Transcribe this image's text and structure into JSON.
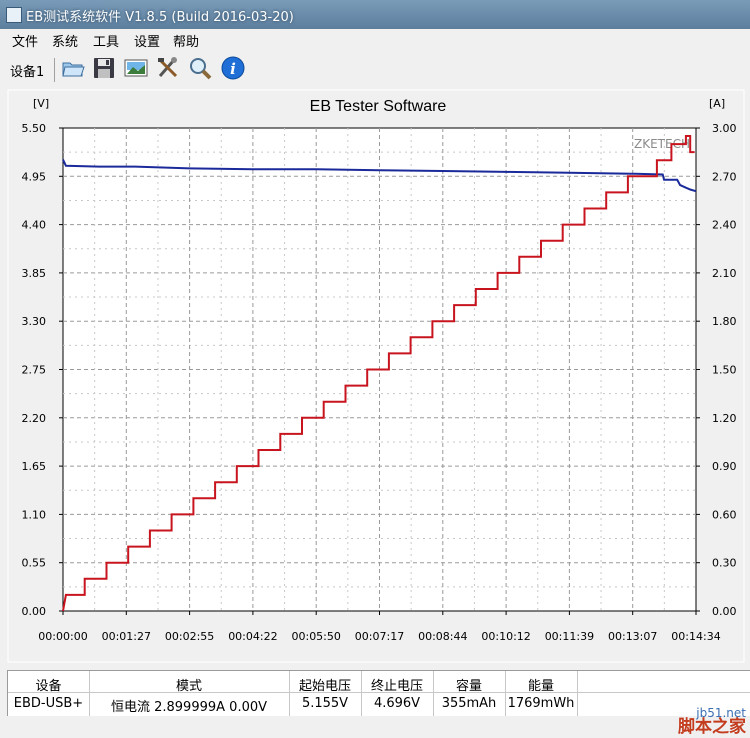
{
  "window": {
    "title": "EB测试系统软件 V1.8.5 (Build 2016-03-20)"
  },
  "menu": [
    "文件",
    "系统",
    "工具",
    "设置",
    "帮助"
  ],
  "toolbar": {
    "device_tab": "设备1",
    "buttons": [
      "open-folder-icon",
      "save-disk-icon",
      "image-chart-icon",
      "tools-icon",
      "zoom-magnifier-icon",
      "info-icon"
    ]
  },
  "chart_data": {
    "type": "line",
    "title": "EB Tester Software",
    "watermark": "ZKETECH",
    "left_unit": "[V]",
    "right_unit": "[A]",
    "left_ticks": [
      "0.00",
      "0.55",
      "1.10",
      "1.65",
      "2.20",
      "2.75",
      "3.30",
      "3.85",
      "4.40",
      "4.95",
      "5.50"
    ],
    "right_ticks": [
      "0.00",
      "0.30",
      "0.60",
      "0.90",
      "1.20",
      "1.50",
      "1.80",
      "2.10",
      "2.40",
      "2.70",
      "3.00"
    ],
    "x_ticks": [
      "00:00:00",
      "00:01:27",
      "00:02:55",
      "00:04:22",
      "00:05:50",
      "00:07:17",
      "00:08:44",
      "00:10:12",
      "00:11:39",
      "00:13:07",
      "00:14:34"
    ],
    "x_range_seconds": [
      0,
      874
    ],
    "ylim_left": [
      0,
      5.5
    ],
    "ylim_right": [
      0,
      3.0
    ],
    "grid": true,
    "series": [
      {
        "axis": "left",
        "color": "#1b2a9a",
        "points": [
          [
            0,
            5.14
          ],
          [
            4,
            5.07
          ],
          [
            50,
            5.06
          ],
          [
            100,
            5.06
          ],
          [
            175,
            5.04
          ],
          [
            262,
            5.03
          ],
          [
            350,
            5.03
          ],
          [
            437,
            5.02
          ],
          [
            524,
            5.01
          ],
          [
            612,
            5.0
          ],
          [
            699,
            4.99
          ],
          [
            786,
            4.98
          ],
          [
            828,
            4.97
          ],
          [
            830,
            4.91
          ],
          [
            848,
            4.91
          ],
          [
            852,
            4.85
          ],
          [
            860,
            4.82
          ],
          [
            866,
            4.8
          ],
          [
            874,
            4.78
          ]
        ]
      },
      {
        "axis": "right",
        "color": "#c8141e",
        "points": [
          [
            0,
            0.0
          ],
          [
            4,
            0.1
          ],
          [
            30,
            0.1
          ],
          [
            30,
            0.2
          ],
          [
            60,
            0.2
          ],
          [
            60,
            0.3
          ],
          [
            90,
            0.3
          ],
          [
            90,
            0.4
          ],
          [
            120,
            0.4
          ],
          [
            120,
            0.5
          ],
          [
            150,
            0.5
          ],
          [
            150,
            0.6
          ],
          [
            180,
            0.6
          ],
          [
            180,
            0.7
          ],
          [
            210,
            0.7
          ],
          [
            210,
            0.8
          ],
          [
            240,
            0.8
          ],
          [
            240,
            0.9
          ],
          [
            270,
            0.9
          ],
          [
            270,
            1.0
          ],
          [
            300,
            1.0
          ],
          [
            300,
            1.1
          ],
          [
            330,
            1.1
          ],
          [
            330,
            1.2
          ],
          [
            360,
            1.2
          ],
          [
            360,
            1.3
          ],
          [
            390,
            1.3
          ],
          [
            390,
            1.4
          ],
          [
            420,
            1.4
          ],
          [
            420,
            1.5
          ],
          [
            450,
            1.5
          ],
          [
            450,
            1.6
          ],
          [
            480,
            1.6
          ],
          [
            480,
            1.7
          ],
          [
            510,
            1.7
          ],
          [
            510,
            1.8
          ],
          [
            540,
            1.8
          ],
          [
            540,
            1.9
          ],
          [
            570,
            1.9
          ],
          [
            570,
            2.0
          ],
          [
            600,
            2.0
          ],
          [
            600,
            2.1
          ],
          [
            630,
            2.1
          ],
          [
            630,
            2.2
          ],
          [
            660,
            2.2
          ],
          [
            660,
            2.3
          ],
          [
            690,
            2.3
          ],
          [
            690,
            2.4
          ],
          [
            720,
            2.4
          ],
          [
            720,
            2.5
          ],
          [
            750,
            2.5
          ],
          [
            750,
            2.6
          ],
          [
            780,
            2.6
          ],
          [
            780,
            2.7
          ],
          [
            820,
            2.7
          ],
          [
            820,
            2.8
          ],
          [
            840,
            2.8
          ],
          [
            840,
            2.9
          ],
          [
            860,
            2.9
          ],
          [
            860,
            2.95
          ],
          [
            866,
            2.95
          ],
          [
            866,
            2.85
          ],
          [
            872,
            2.85
          ]
        ]
      }
    ]
  },
  "table": {
    "headers": [
      "设备",
      "模式",
      "起始电压",
      "终止电压",
      "容量",
      "能量"
    ],
    "row": [
      "EBD-USB+",
      "恒电流  2.899999A  0.00V",
      "5.155V",
      "4.696V",
      "355mAh",
      "1769mWh"
    ]
  },
  "watermark_site": {
    "line1": "jb51.net",
    "line2": "脚本之家"
  }
}
